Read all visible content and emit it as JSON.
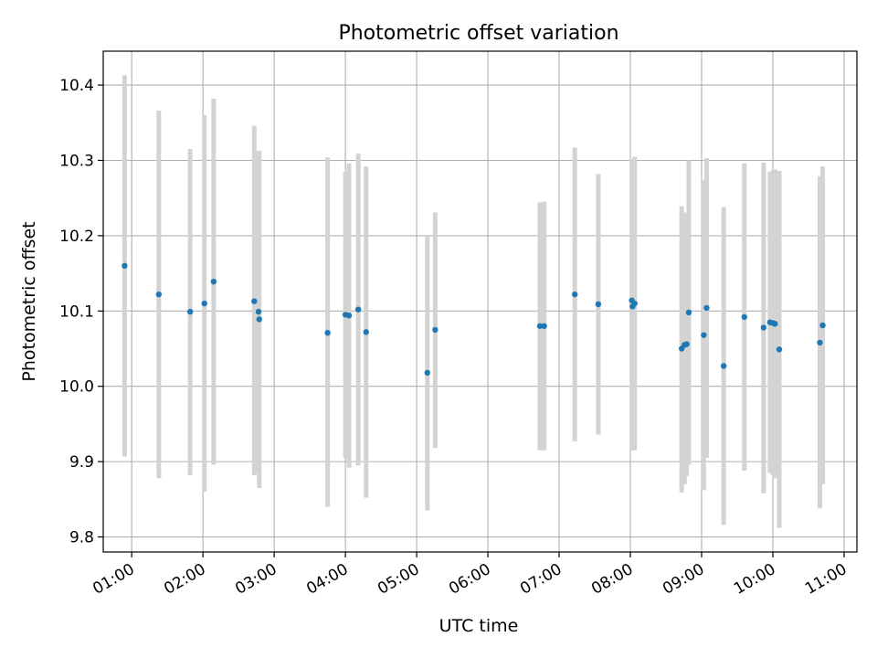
{
  "chart_data": {
    "type": "scatter",
    "title": "Photometric offset variation",
    "xlabel": "UTC time",
    "ylabel": "Photometric offset",
    "x_unit": "UTC hours",
    "xlim": [
      0.6,
      11.18
    ],
    "ylim": [
      9.78,
      10.445
    ],
    "x_ticks": [
      {
        "value": 1,
        "label": "01:00"
      },
      {
        "value": 2,
        "label": "02:00"
      },
      {
        "value": 3,
        "label": "03:00"
      },
      {
        "value": 4,
        "label": "04:00"
      },
      {
        "value": 5,
        "label": "05:00"
      },
      {
        "value": 6,
        "label": "06:00"
      },
      {
        "value": 7,
        "label": "07:00"
      },
      {
        "value": 8,
        "label": "08:00"
      },
      {
        "value": 9,
        "label": "09:00"
      },
      {
        "value": 10,
        "label": "10:00"
      },
      {
        "value": 11,
        "label": "11:00"
      }
    ],
    "y_ticks": [
      {
        "value": 9.8,
        "label": "9.8"
      },
      {
        "value": 9.9,
        "label": "9.9"
      },
      {
        "value": 10.0,
        "label": "10.0"
      },
      {
        "value": 10.1,
        "label": "10.1"
      },
      {
        "value": 10.2,
        "label": "10.2"
      },
      {
        "value": 10.3,
        "label": "10.3"
      },
      {
        "value": 10.4,
        "label": "10.4"
      }
    ],
    "grid": true,
    "point_color": "#1f77b4",
    "errorbar_color": "#d3d3d3",
    "points": [
      {
        "x": 0.9,
        "y": 10.16,
        "lo": 9.907,
        "hi": 10.413
      },
      {
        "x": 1.38,
        "y": 10.122,
        "lo": 9.878,
        "hi": 10.366
      },
      {
        "x": 1.82,
        "y": 10.099,
        "lo": 9.882,
        "hi": 10.315
      },
      {
        "x": 2.02,
        "y": 10.11,
        "lo": 9.86,
        "hi": 10.36
      },
      {
        "x": 2.15,
        "y": 10.139,
        "lo": 9.896,
        "hi": 10.382
      },
      {
        "x": 2.72,
        "y": 10.113,
        "lo": 9.882,
        "hi": 10.346
      },
      {
        "x": 2.78,
        "y": 10.099,
        "lo": 9.885,
        "hi": 10.312
      },
      {
        "x": 2.79,
        "y": 10.089,
        "lo": 9.865,
        "hi": 10.313
      },
      {
        "x": 3.75,
        "y": 10.071,
        "lo": 9.84,
        "hi": 10.304
      },
      {
        "x": 4.0,
        "y": 10.095,
        "lo": 9.905,
        "hi": 10.285
      },
      {
        "x": 4.05,
        "y": 10.094,
        "lo": 9.892,
        "hi": 10.296
      },
      {
        "x": 4.18,
        "y": 10.102,
        "lo": 9.895,
        "hi": 10.309
      },
      {
        "x": 4.29,
        "y": 10.072,
        "lo": 9.852,
        "hi": 10.292
      },
      {
        "x": 5.15,
        "y": 10.018,
        "lo": 9.835,
        "hi": 10.2
      },
      {
        "x": 5.26,
        "y": 10.075,
        "lo": 9.918,
        "hi": 10.231
      },
      {
        "x": 6.73,
        "y": 10.08,
        "lo": 9.915,
        "hi": 10.244
      },
      {
        "x": 6.79,
        "y": 10.08,
        "lo": 9.915,
        "hi": 10.245
      },
      {
        "x": 7.22,
        "y": 10.122,
        "lo": 9.927,
        "hi": 10.317
      },
      {
        "x": 7.55,
        "y": 10.109,
        "lo": 9.936,
        "hi": 10.282
      },
      {
        "x": 8.02,
        "y": 10.114,
        "lo": 9.915,
        "hi": 10.302
      },
      {
        "x": 8.03,
        "y": 10.106,
        "lo": 9.915,
        "hi": 10.299
      },
      {
        "x": 8.06,
        "y": 10.11,
        "lo": 9.915,
        "hi": 10.305
      },
      {
        "x": 8.72,
        "y": 10.05,
        "lo": 9.859,
        "hi": 10.239
      },
      {
        "x": 8.76,
        "y": 10.055,
        "lo": 9.87,
        "hi": 10.229
      },
      {
        "x": 8.79,
        "y": 10.056,
        "lo": 9.881,
        "hi": 10.231
      },
      {
        "x": 8.82,
        "y": 10.098,
        "lo": 9.896,
        "hi": 10.3
      },
      {
        "x": 9.03,
        "y": 10.068,
        "lo": 9.862,
        "hi": 10.274
      },
      {
        "x": 9.07,
        "y": 10.104,
        "lo": 9.905,
        "hi": 10.303
      },
      {
        "x": 9.31,
        "y": 10.027,
        "lo": 9.816,
        "hi": 10.238
      },
      {
        "x": 9.6,
        "y": 10.092,
        "lo": 9.888,
        "hi": 10.296
      },
      {
        "x": 9.87,
        "y": 10.078,
        "lo": 9.858,
        "hi": 10.297
      },
      {
        "x": 9.96,
        "y": 10.085,
        "lo": 9.885,
        "hi": 10.285
      },
      {
        "x": 10.0,
        "y": 10.084,
        "lo": 9.882,
        "hi": 10.287
      },
      {
        "x": 10.03,
        "y": 10.083,
        "lo": 9.878,
        "hi": 10.288
      },
      {
        "x": 10.09,
        "y": 10.049,
        "lo": 9.812,
        "hi": 10.286
      },
      {
        "x": 10.66,
        "y": 10.058,
        "lo": 9.838,
        "hi": 10.279
      },
      {
        "x": 10.7,
        "y": 10.081,
        "lo": 9.87,
        "hi": 10.292
      }
    ]
  }
}
